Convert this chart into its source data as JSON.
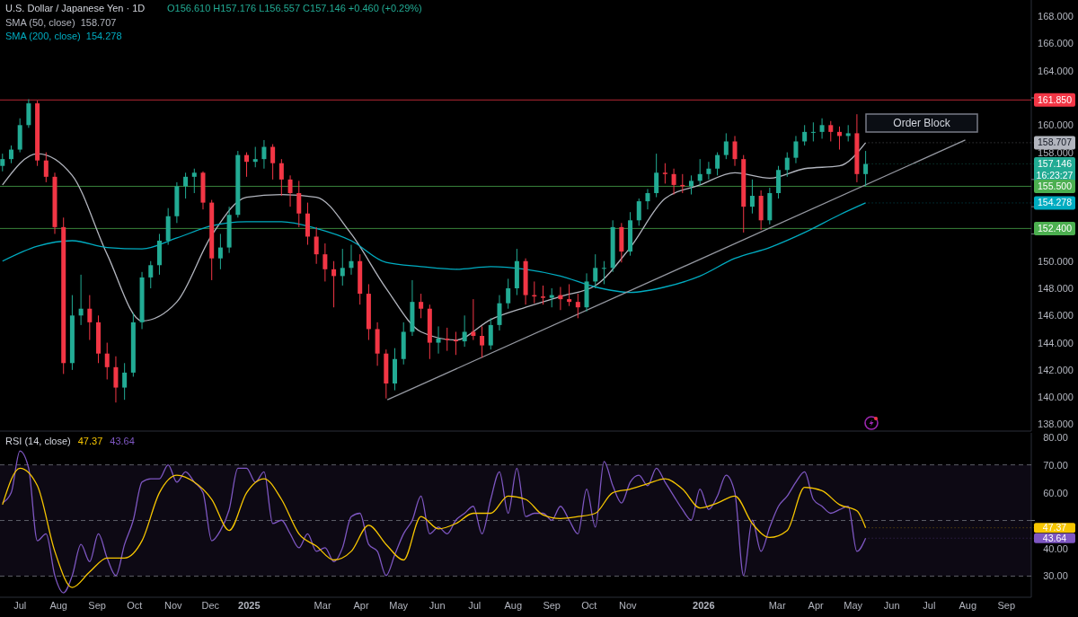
{
  "chart_data": [
    {
      "type": "candlestick",
      "title": "U.S. Dollar / Japanese Yen · 1D",
      "legend": "top left",
      "tick_labels": "y",
      "xlim": [
        "2024-06-15",
        "2026-09-21"
      ],
      "ylim": [
        137.5,
        169.2
      ],
      "yticks": [
        {
          "value": 138,
          "label": "138.000"
        },
        {
          "value": 140,
          "label": "140.000"
        },
        {
          "value": 142,
          "label": "142.000"
        },
        {
          "value": 144,
          "label": "144.000"
        },
        {
          "value": 146,
          "label": "146.000"
        },
        {
          "value": 148,
          "label": "148.000"
        },
        {
          "value": 150,
          "label": "150.000"
        },
        {
          "value": 152,
          "label": null
        },
        {
          "value": 154,
          "label": null
        },
        {
          "value": 156,
          "label": null
        },
        {
          "value": 158,
          "label": "158.000"
        },
        {
          "value": 160,
          "label": "160.000"
        },
        {
          "value": 162,
          "label": null
        },
        {
          "value": 164,
          "label": "164.000"
        },
        {
          "value": 166,
          "label": "166.000"
        },
        {
          "value": 168,
          "label": "168.000"
        }
      ],
      "x": [
        "2024-06-17",
        "2024-06-24",
        "2024-07-01",
        "2024-07-08",
        "2024-07-15",
        "2024-07-22",
        "2024-07-29",
        "2024-08-05",
        "2024-08-12",
        "2024-08-19",
        "2024-08-26",
        "2024-09-02",
        "2024-09-09",
        "2024-09-16",
        "2024-09-23",
        "2024-09-30",
        "2024-10-07",
        "2024-10-14",
        "2024-10-21",
        "2024-10-28",
        "2024-11-04",
        "2024-11-11",
        "2024-11-18",
        "2024-11-25",
        "2024-12-02",
        "2024-12-09",
        "2024-12-16",
        "2024-12-23",
        "2024-12-30",
        "2025-01-06",
        "2025-01-13",
        "2025-01-20",
        "2025-01-27",
        "2025-02-03",
        "2025-02-10",
        "2025-02-17",
        "2025-02-24",
        "2025-03-03",
        "2025-03-10",
        "2025-03-17",
        "2025-03-24",
        "2025-03-31",
        "2025-04-07",
        "2025-04-14",
        "2025-04-21",
        "2025-04-28",
        "2025-05-05",
        "2025-05-12",
        "2025-05-19",
        "2025-05-26",
        "2025-06-02",
        "2025-06-09",
        "2025-06-16",
        "2025-06-23",
        "2025-06-30",
        "2025-07-07",
        "2025-07-14",
        "2025-07-21",
        "2025-07-28",
        "2025-08-04",
        "2025-08-11",
        "2025-08-18",
        "2025-08-25",
        "2025-09-01",
        "2025-09-08",
        "2025-09-15",
        "2025-09-22",
        "2025-09-29",
        "2025-10-06",
        "2025-10-13",
        "2025-10-20",
        "2025-10-27",
        "2025-11-03",
        "2025-11-10",
        "2025-11-17",
        "2025-11-24",
        "2025-12-01",
        "2025-12-08",
        "2025-12-15",
        "2025-12-22",
        "2025-12-29",
        "2026-01-05",
        "2026-01-12",
        "2026-01-19",
        "2026-01-26",
        "2026-02-02",
        "2026-02-09",
        "2026-02-16",
        "2026-02-23",
        "2026-03-02",
        "2026-03-09",
        "2026-03-16",
        "2026-03-23",
        "2026-03-30",
        "2026-04-06",
        "2026-04-13",
        "2026-04-20",
        "2026-04-27",
        "2026-05-04",
        "2026-05-11"
      ],
      "ohlc": [
        [
          157.0,
          157.9,
          156.6,
          157.5
        ],
        [
          157.5,
          158.5,
          157.2,
          158.2
        ],
        [
          158.2,
          160.5,
          158.0,
          160.0
        ],
        [
          160.0,
          161.9,
          159.8,
          161.6
        ],
        [
          161.6,
          161.8,
          157.0,
          157.4
        ],
        [
          157.4,
          158.0,
          155.8,
          156.2
        ],
        [
          156.2,
          156.5,
          152.0,
          152.5
        ],
        [
          152.5,
          153.2,
          141.7,
          142.5
        ],
        [
          142.5,
          147.5,
          142.0,
          146.0
        ],
        [
          146.0,
          149.0,
          145.3,
          146.5
        ],
        [
          146.5,
          147.5,
          144.2,
          145.5
        ],
        [
          145.5,
          146.0,
          142.5,
          143.2
        ],
        [
          143.2,
          144.0,
          141.3,
          142.2
        ],
        [
          142.2,
          143.0,
          139.6,
          140.7
        ],
        [
          140.7,
          142.5,
          139.8,
          141.8
        ],
        [
          141.8,
          146.2,
          141.5,
          145.5
        ],
        [
          145.5,
          149.2,
          145.0,
          148.8
        ],
        [
          148.8,
          150.0,
          148.0,
          149.7
        ],
        [
          149.7,
          152.0,
          149.0,
          151.5
        ],
        [
          151.5,
          153.9,
          151.2,
          153.3
        ],
        [
          153.3,
          155.8,
          152.8,
          155.5
        ],
        [
          155.5,
          156.5,
          154.6,
          156.2
        ],
        [
          156.2,
          156.8,
          155.0,
          156.5
        ],
        [
          156.5,
          156.6,
          153.8,
          154.3
        ],
        [
          154.3,
          154.5,
          148.6,
          150.2
        ],
        [
          150.2,
          152.0,
          149.4,
          151.0
        ],
        [
          151.0,
          154.0,
          150.6,
          153.4
        ],
        [
          153.4,
          158.1,
          153.2,
          157.8
        ],
        [
          157.8,
          158.0,
          156.2,
          157.3
        ],
        [
          157.3,
          158.4,
          156.9,
          157.5
        ],
        [
          157.5,
          158.9,
          156.8,
          158.4
        ],
        [
          158.4,
          158.6,
          156.0,
          157.2
        ],
        [
          157.2,
          157.5,
          154.8,
          156.0
        ],
        [
          156.0,
          156.3,
          154.0,
          155.0
        ],
        [
          155.0,
          155.9,
          152.5,
          153.5
        ],
        [
          153.5,
          154.3,
          151.2,
          151.8
        ],
        [
          151.8,
          152.5,
          149.8,
          150.5
        ],
        [
          150.5,
          151.3,
          148.5,
          149.4
        ],
        [
          149.4,
          150.0,
          146.6,
          148.9
        ],
        [
          148.9,
          150.9,
          148.2,
          149.5
        ],
        [
          149.5,
          151.2,
          149.0,
          150.0
        ],
        [
          150.0,
          150.5,
          146.8,
          147.6
        ],
        [
          147.6,
          148.3,
          144.2,
          145.0
        ],
        [
          145.0,
          145.5,
          142.3,
          143.2
        ],
        [
          143.2,
          143.5,
          139.9,
          141.0
        ],
        [
          141.0,
          143.6,
          140.5,
          142.8
        ],
        [
          142.8,
          145.5,
          142.4,
          144.8
        ],
        [
          144.8,
          148.6,
          144.5,
          147.0
        ],
        [
          147.0,
          147.6,
          145.8,
          146.5
        ],
        [
          146.5,
          146.8,
          142.8,
          144.0
        ],
        [
          144.0,
          145.2,
          143.2,
          144.3
        ],
        [
          144.3,
          145.1,
          143.4,
          144.2
        ],
        [
          144.2,
          144.8,
          143.1,
          144.1
        ],
        [
          144.1,
          146.0,
          143.7,
          144.8
        ],
        [
          144.8,
          147.2,
          144.2,
          144.5
        ],
        [
          144.5,
          145.2,
          142.9,
          143.8
        ],
        [
          143.8,
          145.8,
          143.5,
          145.3
        ],
        [
          145.3,
          147.5,
          144.9,
          146.9
        ],
        [
          146.9,
          148.7,
          146.5,
          148.0
        ],
        [
          148.0,
          150.9,
          147.5,
          150.0
        ],
        [
          150.0,
          150.2,
          146.8,
          147.5
        ],
        [
          147.5,
          148.5,
          146.9,
          147.4
        ],
        [
          147.4,
          148.2,
          146.8,
          147.3
        ],
        [
          147.3,
          148.0,
          146.6,
          147.5
        ],
        [
          147.5,
          148.1,
          146.4,
          147.2
        ],
        [
          147.2,
          148.3,
          146.7,
          147.0
        ],
        [
          147.0,
          147.6,
          145.8,
          146.6
        ],
        [
          146.6,
          149.1,
          146.3,
          148.5
        ],
        [
          148.5,
          150.5,
          148.0,
          149.5
        ],
        [
          149.5,
          150.0,
          148.3,
          149.5
        ],
        [
          149.5,
          153.0,
          149.2,
          152.5
        ],
        [
          152.5,
          152.8,
          149.9,
          150.7
        ],
        [
          150.7,
          153.6,
          150.4,
          153.0
        ],
        [
          153.0,
          154.6,
          152.6,
          154.4
        ],
        [
          154.4,
          155.3,
          153.8,
          155.0
        ],
        [
          155.0,
          157.9,
          154.7,
          156.5
        ],
        [
          156.5,
          157.2,
          155.7,
          156.4
        ],
        [
          156.4,
          156.8,
          154.9,
          155.6
        ],
        [
          155.6,
          156.4,
          155.0,
          155.5
        ],
        [
          155.5,
          156.3,
          154.9,
          155.9
        ],
        [
          155.9,
          157.5,
          155.6,
          156.4
        ],
        [
          156.4,
          157.3,
          156.0,
          156.8
        ],
        [
          156.8,
          158.0,
          156.3,
          157.8
        ],
        [
          157.8,
          159.4,
          157.5,
          158.8
        ],
        [
          158.8,
          159.2,
          157.0,
          157.5
        ],
        [
          157.5,
          157.8,
          152.1,
          154.0
        ],
        [
          154.0,
          156.0,
          153.5,
          154.8
        ],
        [
          154.8,
          155.2,
          152.3,
          153.0
        ],
        [
          153.0,
          155.4,
          152.7,
          155.0
        ],
        [
          155.0,
          157.0,
          154.6,
          156.7
        ],
        [
          156.7,
          158.0,
          156.2,
          157.6
        ],
        [
          157.6,
          159.2,
          157.2,
          158.8
        ],
        [
          158.8,
          160.0,
          158.5,
          159.5
        ],
        [
          159.5,
          160.2,
          158.8,
          159.5
        ],
        [
          159.5,
          160.5,
          159.0,
          160.0
        ],
        [
          160.0,
          160.3,
          158.8,
          159.5
        ],
        [
          159.5,
          159.9,
          158.2,
          159.2
        ],
        [
          159.2,
          160.0,
          158.8,
          159.4
        ],
        [
          159.4,
          160.8,
          155.8,
          156.4
        ],
        [
          156.4,
          158.1,
          155.5,
          157.146
        ]
      ],
      "series": [
        {
          "type": "line",
          "name": "SMA (50, close)",
          "color": "#b2b5be",
          "x": [
            "2024-06-17",
            "2024-07-15",
            "2024-08-12",
            "2024-09-09",
            "2024-10-07",
            "2024-11-04",
            "2024-12-02",
            "2024-12-30",
            "2025-01-27",
            "2025-02-24",
            "2025-03-24",
            "2025-04-21",
            "2025-05-19",
            "2025-06-16",
            "2025-07-14",
            "2025-08-11",
            "2025-09-08",
            "2025-10-06",
            "2025-11-03",
            "2025-12-01",
            "2025-12-29",
            "2026-01-26",
            "2026-02-23",
            "2026-03-23",
            "2026-04-20",
            "2026-05-11"
          ],
          "values": [
            155.6,
            157.9,
            156.3,
            150.5,
            145.6,
            147.0,
            151.9,
            154.7,
            154.9,
            154.7,
            152.0,
            148.0,
            144.8,
            144.2,
            145.7,
            146.6,
            147.4,
            148.2,
            151.0,
            154.6,
            155.6,
            156.5,
            156.1,
            156.8,
            157.0,
            158.707
          ]
        },
        {
          "type": "line",
          "name": "SMA (200, close)",
          "color": "#00acc1",
          "x": [
            "2024-06-17",
            "2024-07-15",
            "2024-08-12",
            "2024-09-09",
            "2024-10-07",
            "2024-11-04",
            "2024-12-02",
            "2024-12-30",
            "2025-01-27",
            "2025-02-24",
            "2025-03-24",
            "2025-04-21",
            "2025-05-19",
            "2025-06-16",
            "2025-07-14",
            "2025-08-11",
            "2025-09-08",
            "2025-10-06",
            "2025-11-03",
            "2025-12-01",
            "2025-12-29",
            "2026-01-26",
            "2026-02-23",
            "2026-03-23",
            "2026-04-20",
            "2026-05-11"
          ],
          "values": [
            150.0,
            151.1,
            151.5,
            151.0,
            150.9,
            151.7,
            152.6,
            152.9,
            152.9,
            152.4,
            151.5,
            149.9,
            149.6,
            149.4,
            149.6,
            149.4,
            148.9,
            148.1,
            147.7,
            148.1,
            148.9,
            150.2,
            151.0,
            152.1,
            153.4,
            154.278
          ]
        },
        {
          "type": "line",
          "color": "#9598a1",
          "x": [
            "2025-04-22",
            "2026-07-30"
          ],
          "values": [
            139.8,
            158.9
          ]
        }
      ],
      "ref_lines": [
        {
          "axis": "y",
          "value": 161.85,
          "label": "161.850",
          "color": "#f23645"
        },
        {
          "axis": "y",
          "value": 155.5,
          "label": "155.500",
          "color": "#4caf50"
        },
        {
          "axis": "y",
          "value": 152.4,
          "label": "152.400",
          "color": "#4caf50"
        }
      ],
      "annotations": [
        "O156.610 H157.176 L156.557 C157.146 +0.460 (+0.29%)",
        {
          "text": "158.707",
          "x": "2026-05-11",
          "y": 158.707
        },
        {
          "text": "157.146",
          "x": "2026-05-11",
          "y": 157.146
        },
        {
          "text": "16:23:27",
          "x": "2026-05-11",
          "y": 157.146
        },
        {
          "text": "154.278",
          "x": "2026-05-11",
          "y": 154.278
        },
        "Order Block"
      ]
    },
    {
      "type": "line",
      "title": "RSI (14, close)",
      "xlim": [
        "2024-06-15",
        "2026-09-21"
      ],
      "ylim": [
        22.4,
        81.5
      ],
      "yticks": [
        {
          "value": 30,
          "label": "30.00"
        },
        {
          "value": 40,
          "label": "40.00"
        },
        {
          "value": 50,
          "label": null
        },
        {
          "value": 60,
          "label": "60.00"
        },
        {
          "value": 70,
          "label": "70.00"
        },
        {
          "value": 80,
          "label": "80.00"
        }
      ],
      "xticks": [
        {
          "value": "2024-07-01",
          "label": "Jul"
        },
        {
          "value": "2024-08-01",
          "label": "Aug"
        },
        {
          "value": "2024-09-01",
          "label": "Sep"
        },
        {
          "value": "2024-10-01",
          "label": "Oct"
        },
        {
          "value": "2024-11-01",
          "label": "Nov"
        },
        {
          "value": "2024-12-01",
          "label": "Dec"
        },
        {
          "value": "2025-01-01",
          "label": "2025"
        },
        {
          "value": "2025-03-01",
          "label": "Mar"
        },
        {
          "value": "2025-04-01",
          "label": "Apr"
        },
        {
          "value": "2025-05-01",
          "label": "May"
        },
        {
          "value": "2025-06-01",
          "label": "Jun"
        },
        {
          "value": "2025-07-01",
          "label": "Jul"
        },
        {
          "value": "2025-08-01",
          "label": "Aug"
        },
        {
          "value": "2025-09-01",
          "label": "Sep"
        },
        {
          "value": "2025-10-01",
          "label": "Oct"
        },
        {
          "value": "2025-11-01",
          "label": "Nov"
        },
        {
          "value": "2026-01-01",
          "label": "2026"
        },
        {
          "value": "2026-03-01",
          "label": "Mar"
        },
        {
          "value": "2026-04-01",
          "label": "Apr"
        },
        {
          "value": "2026-05-01",
          "label": "May"
        },
        {
          "value": "2026-06-01",
          "label": "Jun"
        },
        {
          "value": "2026-07-01",
          "label": "Jul"
        },
        {
          "value": "2026-08-01",
          "label": "Aug"
        },
        {
          "value": "2026-09-01",
          "label": "Sep"
        }
      ],
      "x": [
        "2024-06-17",
        "2024-06-24",
        "2024-07-01",
        "2024-07-08",
        "2024-07-15",
        "2024-07-22",
        "2024-07-29",
        "2024-08-05",
        "2024-08-12",
        "2024-08-19",
        "2024-08-26",
        "2024-09-02",
        "2024-09-09",
        "2024-09-16",
        "2024-09-23",
        "2024-09-30",
        "2024-10-07",
        "2024-10-14",
        "2024-10-21",
        "2024-10-28",
        "2024-11-04",
        "2024-11-11",
        "2024-11-18",
        "2024-11-25",
        "2024-12-02",
        "2024-12-09",
        "2024-12-16",
        "2024-12-23",
        "2024-12-30",
        "2025-01-06",
        "2025-01-13",
        "2025-01-20",
        "2025-01-27",
        "2025-02-03",
        "2025-02-10",
        "2025-02-17",
        "2025-02-24",
        "2025-03-03",
        "2025-03-10",
        "2025-03-17",
        "2025-03-24",
        "2025-03-31",
        "2025-04-07",
        "2025-04-14",
        "2025-04-21",
        "2025-04-28",
        "2025-05-05",
        "2025-05-12",
        "2025-05-19",
        "2025-05-26",
        "2025-06-02",
        "2025-06-09",
        "2025-06-16",
        "2025-06-23",
        "2025-06-30",
        "2025-07-07",
        "2025-07-14",
        "2025-07-21",
        "2025-07-28",
        "2025-08-04",
        "2025-08-11",
        "2025-08-18",
        "2025-08-25",
        "2025-09-01",
        "2025-09-08",
        "2025-09-15",
        "2025-09-22",
        "2025-09-29",
        "2025-10-06",
        "2025-10-13",
        "2025-10-20",
        "2025-10-27",
        "2025-11-03",
        "2025-11-10",
        "2025-11-17",
        "2025-11-24",
        "2025-12-01",
        "2025-12-08",
        "2025-12-15",
        "2025-12-22",
        "2025-12-29",
        "2026-01-05",
        "2026-01-12",
        "2026-01-19",
        "2026-01-26",
        "2026-02-02",
        "2026-02-09",
        "2026-02-16",
        "2026-02-23",
        "2026-03-02",
        "2026-03-09",
        "2026-03-16",
        "2026-03-23",
        "2026-03-30",
        "2026-04-06",
        "2026-04-13",
        "2026-04-20",
        "2026-04-27",
        "2026-05-04",
        "2026-05-11"
      ],
      "series": [
        {
          "color": "#7e57c2",
          "values": [
            56.3,
            60,
            75,
            68.8,
            42.7,
            45.2,
            30.2,
            24,
            30.2,
            41.4,
            35.2,
            45.2,
            36.5,
            30.2,
            41.4,
            50.1,
            63.8,
            65,
            65,
            70,
            63.8,
            67.5,
            63.8,
            60,
            42.7,
            46.4,
            53.9,
            68.8,
            68.8,
            63.8,
            67.5,
            48.9,
            50.1,
            45.2,
            40.2,
            45.2,
            38.9,
            40.2,
            35.2,
            40.2,
            51.4,
            52.6,
            41.4,
            38.9,
            30.2,
            37.7,
            45.2,
            50.1,
            58.8,
            45.2,
            47.6,
            45.2,
            50.1,
            52.6,
            55.1,
            45.2,
            57.6,
            67.5,
            52.6,
            68.8,
            51.4,
            52.6,
            52.6,
            50.1,
            55.1,
            50.1,
            45.2,
            61.3,
            47.6,
            71.2,
            62.5,
            56.3,
            63.8,
            66.3,
            62.5,
            68.8,
            63.8,
            58.8,
            53.9,
            50.1,
            61.3,
            53.9,
            58.8,
            66.3,
            60,
            30.2,
            50.1,
            38.9,
            47.6,
            55.1,
            58.8,
            63.8,
            67.5,
            57.6,
            55.1,
            52.6,
            53.9,
            55.1,
            38.9,
            43.64
          ]
        },
        {
          "color": "#f7c600",
          "x": [
            "2024-06-17",
            "2024-07-01",
            "2024-07-15",
            "2024-07-29",
            "2024-08-12",
            "2024-08-26",
            "2024-09-09",
            "2024-09-23",
            "2024-10-07",
            "2024-10-21",
            "2024-11-04",
            "2024-11-18",
            "2024-12-02",
            "2024-12-16",
            "2024-12-30",
            "2025-01-13",
            "2025-01-27",
            "2025-02-10",
            "2025-02-24",
            "2025-03-10",
            "2025-03-24",
            "2025-04-07",
            "2025-04-21",
            "2025-05-05",
            "2025-05-19",
            "2025-06-02",
            "2025-06-16",
            "2025-06-30",
            "2025-07-14",
            "2025-07-28",
            "2025-08-11",
            "2025-08-25",
            "2025-09-08",
            "2025-09-22",
            "2025-10-06",
            "2025-10-20",
            "2025-11-03",
            "2025-11-17",
            "2025-12-01",
            "2025-12-15",
            "2025-12-29",
            "2026-01-12",
            "2026-01-26",
            "2026-02-09",
            "2026-02-23",
            "2026-03-09",
            "2026-03-23",
            "2026-04-06",
            "2026-04-20",
            "2026-05-04",
            "2026-05-11"
          ],
          "values": [
            55.7,
            68.8,
            62.5,
            38.9,
            25.9,
            31.5,
            36.5,
            36.5,
            42.7,
            60,
            66.3,
            63.8,
            57.6,
            46.4,
            60,
            65,
            57.6,
            45.2,
            40.8,
            35.8,
            38.9,
            48.3,
            41.4,
            35.8,
            51.4,
            47,
            48.9,
            52.6,
            52.6,
            58.8,
            57.6,
            52,
            50.7,
            51.4,
            52.6,
            60,
            61.3,
            63.2,
            65,
            61.3,
            54.5,
            56.3,
            58.8,
            48.9,
            43.9,
            46.4,
            61.9,
            60.7,
            55.7,
            53.5,
            47.37
          ]
        }
      ],
      "bands": [
        {
          "axis": "y",
          "from": 30,
          "to": 70,
          "color": "#7e57c2"
        }
      ],
      "ref_lines": [
        {
          "axis": "y",
          "value": 70,
          "line_style": "dashed",
          "color": "#787b86"
        },
        {
          "axis": "y",
          "value": 50,
          "line_style": "dashed",
          "color": "#787b86"
        },
        {
          "axis": "y",
          "value": 30,
          "line_style": "dashed",
          "color": "#787b86"
        }
      ],
      "annotations": [
        {
          "text": "47.37",
          "x": "2026-05-11",
          "y": 47.37
        },
        {
          "text": "43.64",
          "x": "2026-05-11",
          "y": 43.64
        }
      ]
    }
  ]
}
